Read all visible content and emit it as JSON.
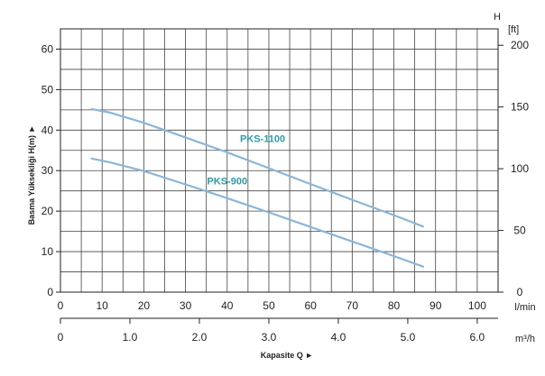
{
  "chart_data": {
    "type": "line",
    "title": "",
    "ylabel": "Basma Yüksekliği H(m)",
    "ylabel_arrow": "►",
    "xlabel": "Kapasite Q",
    "xlabel_arrow": "►",
    "grid": true,
    "y_left": {
      "unit": "",
      "range": [
        0,
        65
      ],
      "ticks": [
        0,
        10,
        20,
        30,
        40,
        50,
        60
      ]
    },
    "y_right": {
      "axis_letter": "H",
      "unit": "[ft]",
      "range": [
        0,
        213.3
      ],
      "ticks": [
        0,
        50,
        100,
        150,
        200
      ]
    },
    "x_lmin": {
      "unit": "l/min",
      "range": [
        0,
        105
      ],
      "ticks": [
        0,
        10,
        20,
        30,
        40,
        50,
        60,
        70,
        80,
        90,
        100
      ]
    },
    "x_m3h": {
      "unit": "m³/h",
      "range": [
        0,
        6.3
      ],
      "ticks": [
        0,
        1.0,
        2.0,
        3.0,
        4.0,
        5.0,
        6.0
      ],
      "tick_labels": [
        "0",
        "1.0",
        "2.0",
        "3.0",
        "4.0",
        "5.0",
        "6.0"
      ]
    },
    "series": [
      {
        "name": "PKS-1100",
        "x": [
          7.5,
          12,
          20,
          30,
          40,
          50,
          60,
          70,
          80,
          87
        ],
        "y": [
          45.2,
          44.3,
          41.8,
          38.2,
          34.5,
          30.6,
          26.7,
          22.8,
          19.0,
          16.2
        ]
      },
      {
        "name": "PKS-900",
        "x": [
          7.5,
          12,
          20,
          30,
          40,
          50,
          60,
          70,
          80,
          87
        ],
        "y": [
          33.0,
          32.0,
          29.9,
          26.6,
          23.2,
          19.7,
          16.1,
          12.5,
          8.9,
          6.3
        ]
      }
    ]
  }
}
